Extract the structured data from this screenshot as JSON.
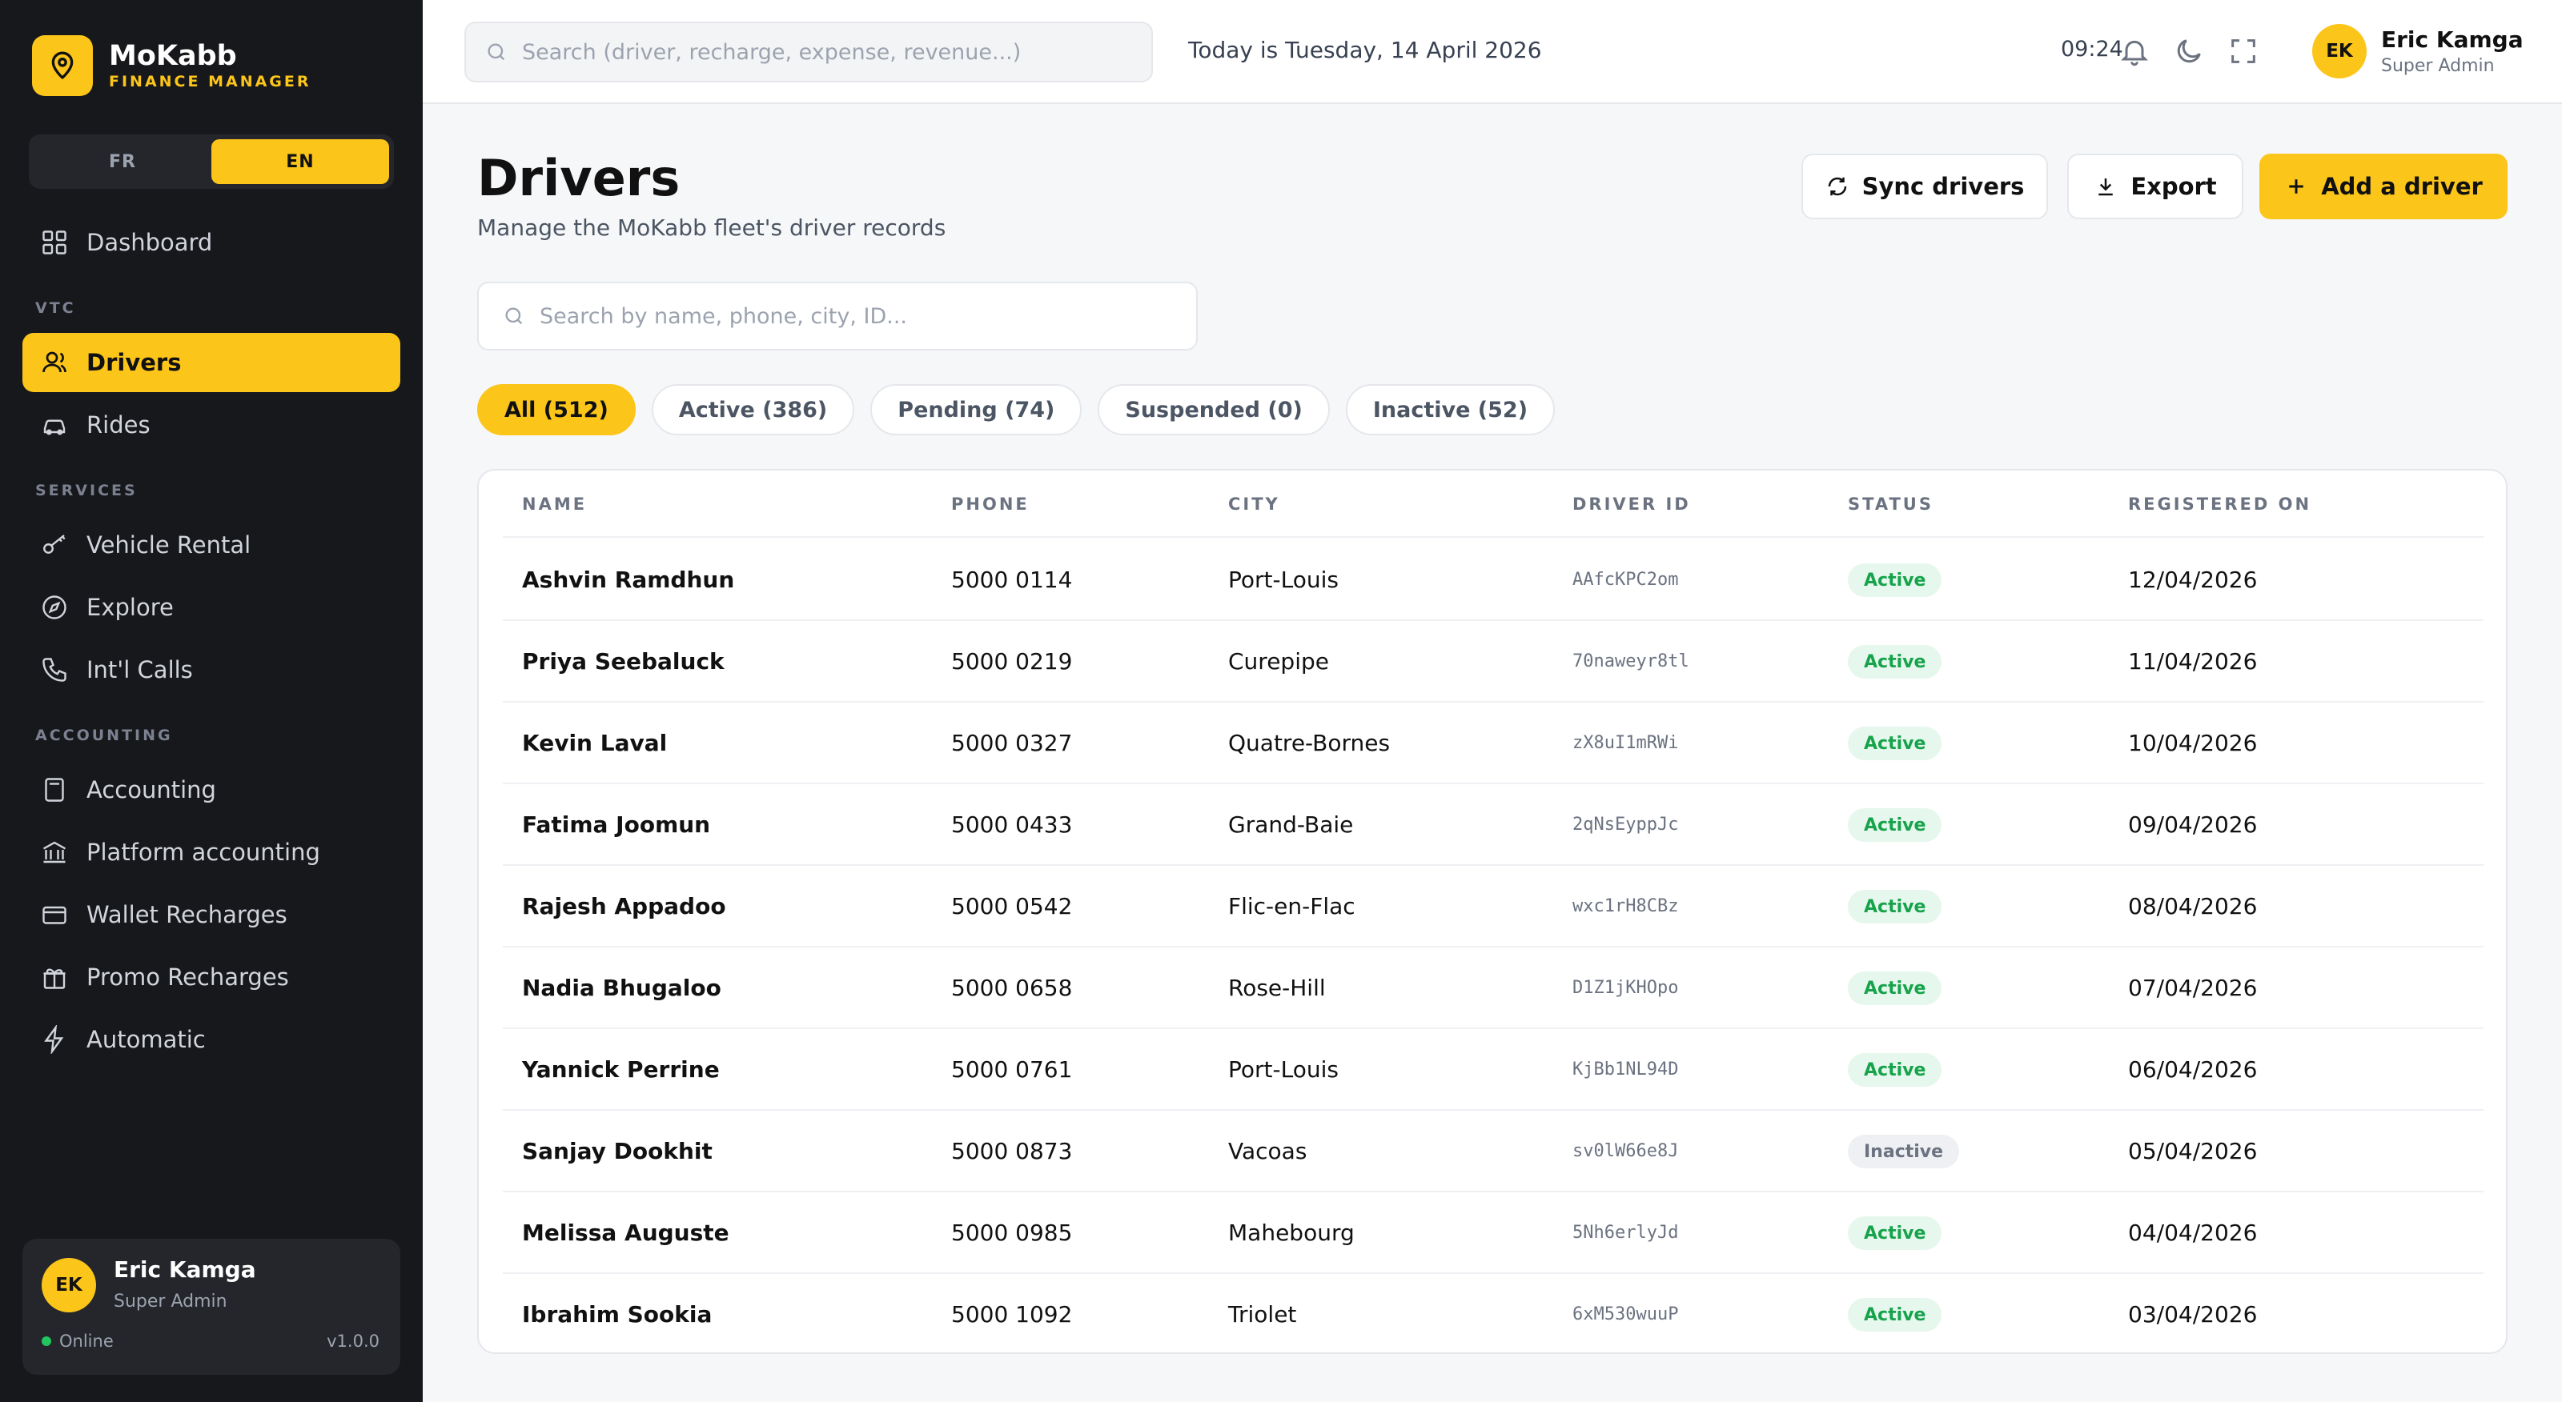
{
  "brand": {
    "name": "MoKabb",
    "subtitle": "FINANCE MANAGER"
  },
  "lang": {
    "fr": "FR",
    "en": "EN",
    "selected": "EN"
  },
  "sidebar": {
    "dashboard": "Dashboard",
    "sections": {
      "vtc": "VTC",
      "services": "SERVICES",
      "accounting": "ACCOUNTING"
    },
    "items": {
      "drivers": "Drivers",
      "rides": "Rides",
      "vehicle_rental": "Vehicle Rental",
      "explore": "Explore",
      "intl_calls": "Int'l Calls",
      "accounting": "Accounting",
      "platform_accounting": "Platform accounting",
      "wallet_recharges": "Wallet Recharges",
      "promo_recharges": "Promo Recharges",
      "automatic": "Automatic"
    },
    "active": "drivers"
  },
  "user": {
    "name": "Eric Kamga",
    "role": "Super Admin",
    "initials": "EK",
    "status": "Online",
    "version": "v1.0.0"
  },
  "topbar": {
    "search_placeholder": "Search (driver, recharge, expense, revenue...)",
    "today": "Today is Tuesday, 14 April 2026",
    "time": "09:24",
    "icons": [
      "bell-icon",
      "moon-icon",
      "fullscreen-icon"
    ]
  },
  "page": {
    "title": "Drivers",
    "subtitle": "Manage the MoKabb fleet's driver records",
    "sync_label": "Sync drivers",
    "export_label": "Export",
    "add_label": "Add a driver",
    "search_placeholder": "Search by name, phone, city, ID..."
  },
  "tabs": [
    "All (512)",
    "Active (386)",
    "Pending (74)",
    "Suspended (0)",
    "Inactive (52)"
  ],
  "table": {
    "columns": [
      "NAME",
      "PHONE",
      "CITY",
      "DRIVER ID",
      "STATUS",
      "REGISTERED ON"
    ],
    "rows": [
      {
        "name": "Ashvin Ramdhun",
        "phone": "5000 0114",
        "city": "Port-Louis",
        "id": "AAfcKPC2om",
        "status": "Active",
        "date": "12/04/2026"
      },
      {
        "name": "Priya Seebaluck",
        "phone": "5000 0219",
        "city": "Curepipe",
        "id": "70naweyr8tl",
        "status": "Active",
        "date": "11/04/2026"
      },
      {
        "name": "Kevin Laval",
        "phone": "5000 0327",
        "city": "Quatre-Bornes",
        "id": "zX8uI1mRWi",
        "status": "Active",
        "date": "10/04/2026"
      },
      {
        "name": "Fatima Joomun",
        "phone": "5000 0433",
        "city": "Grand-Baie",
        "id": "2qNsEyppJc",
        "status": "Active",
        "date": "09/04/2026"
      },
      {
        "name": "Rajesh Appadoo",
        "phone": "5000 0542",
        "city": "Flic-en-Flac",
        "id": "wxc1rH8CBz",
        "status": "Active",
        "date": "08/04/2026"
      },
      {
        "name": "Nadia Bhugaloo",
        "phone": "5000 0658",
        "city": "Rose-Hill",
        "id": "D1Z1jKHOpo",
        "status": "Active",
        "date": "07/04/2026"
      },
      {
        "name": "Yannick Perrine",
        "phone": "5000 0761",
        "city": "Port-Louis",
        "id": "KjBb1NL94D",
        "status": "Active",
        "date": "06/04/2026"
      },
      {
        "name": "Sanjay Dookhit",
        "phone": "5000 0873",
        "city": "Vacoas",
        "id": "sv0lW66e8J",
        "status": "Inactive",
        "date": "05/04/2026"
      },
      {
        "name": "Melissa Auguste",
        "phone": "5000 0985",
        "city": "Mahebourg",
        "id": "5Nh6erlyJd",
        "status": "Active",
        "date": "04/04/2026"
      },
      {
        "name": "Ibrahim Sookia",
        "phone": "5000 1092",
        "city": "Triolet",
        "id": "6xM530wuuP",
        "status": "Active",
        "date": "03/04/2026"
      }
    ]
  },
  "colors": {
    "accent": "#fcc51a",
    "sidebar_bg": "#17181c",
    "active_green": "#16a34a"
  }
}
